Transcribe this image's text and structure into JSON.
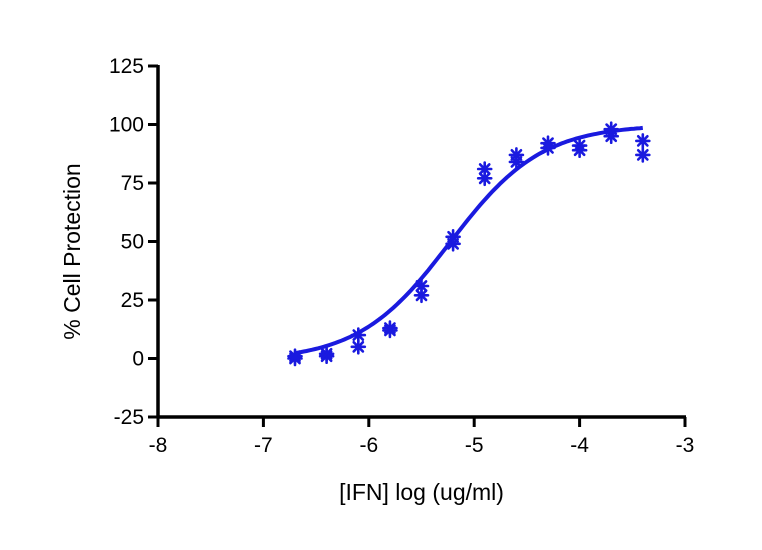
{
  "chart_data": {
    "type": "scatter",
    "title": "",
    "xlabel": "[IFN] log (ug/ml)",
    "ylabel": "% Cell Protection",
    "xlim": [
      -8,
      -3
    ],
    "ylim": [
      -25,
      125
    ],
    "xticks": [
      -8,
      -7,
      -6,
      -5,
      -4,
      -3
    ],
    "yticks": [
      -25,
      0,
      25,
      50,
      75,
      100,
      125
    ],
    "xtick_labels": [
      "-8",
      "-7",
      "-6",
      "-5",
      "-4",
      "-3"
    ],
    "ytick_labels": [
      "-25",
      "0",
      "25",
      "50",
      "75",
      "100",
      "125"
    ],
    "grid": false,
    "legend": "none",
    "color": "#1a1adf",
    "marker": "asterisk",
    "points": [
      {
        "x": -6.7,
        "y": 0
      },
      {
        "x": -6.7,
        "y": 1
      },
      {
        "x": -6.4,
        "y": 1
      },
      {
        "x": -6.4,
        "y": 2
      },
      {
        "x": -6.1,
        "y": 5
      },
      {
        "x": -6.1,
        "y": 10
      },
      {
        "x": -5.8,
        "y": 12
      },
      {
        "x": -5.8,
        "y": 13
      },
      {
        "x": -5.5,
        "y": 27
      },
      {
        "x": -5.5,
        "y": 31
      },
      {
        "x": -5.2,
        "y": 49
      },
      {
        "x": -5.2,
        "y": 52
      },
      {
        "x": -4.9,
        "y": 77
      },
      {
        "x": -4.9,
        "y": 81
      },
      {
        "x": -4.6,
        "y": 84
      },
      {
        "x": -4.6,
        "y": 87
      },
      {
        "x": -4.3,
        "y": 90
      },
      {
        "x": -4.3,
        "y": 92
      },
      {
        "x": -4.0,
        "y": 89
      },
      {
        "x": -4.0,
        "y": 91
      },
      {
        "x": -3.7,
        "y": 95
      },
      {
        "x": -3.7,
        "y": 98
      },
      {
        "x": -3.4,
        "y": 87
      },
      {
        "x": -3.4,
        "y": 93
      }
    ],
    "fit": {
      "model": "sigmoidal dose-response",
      "bottom": -1,
      "top": 100,
      "logEC50": -5.23,
      "hill_slope": 1.0,
      "x_range": [
        -6.7,
        -3.4
      ]
    }
  }
}
